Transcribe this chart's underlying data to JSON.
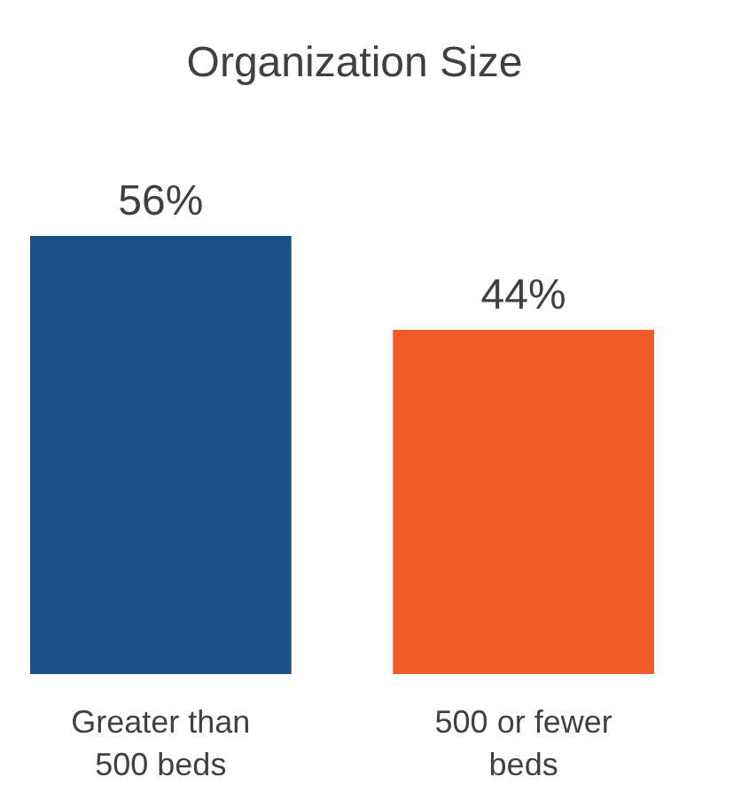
{
  "chart_data": {
    "type": "bar",
    "title": "Organization Size",
    "categories": [
      "Greater than 500 beds",
      "500 or fewer beds"
    ],
    "values": [
      56,
      44
    ],
    "colors": [
      "#1a5286",
      "#f05a28"
    ],
    "value_labels": [
      "56%",
      "44%"
    ]
  }
}
